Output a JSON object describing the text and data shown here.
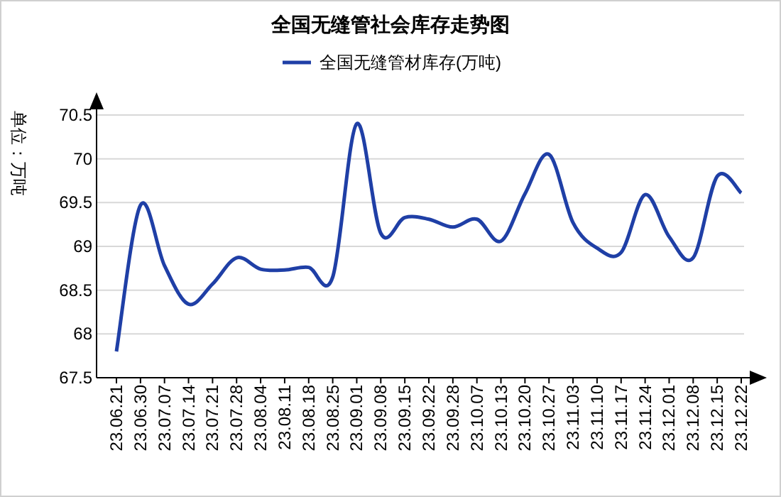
{
  "chart_data": {
    "type": "line",
    "title": "全国无缝管社会库存走势图",
    "ylabel": "单位：万吨",
    "categories": [
      "23.06.21",
      "23.06.30",
      "23.07.07",
      "23.07.14",
      "23.07.21",
      "23.07.28",
      "23.08.04",
      "23.08.11",
      "23.08.18",
      "23.08.25",
      "23.09.01",
      "23.09.08",
      "23.09.15",
      "23.09.22",
      "23.09.28",
      "23.10.07",
      "23.10.13",
      "23.10.20",
      "23.10.27",
      "23.11.03",
      "23.11.10",
      "23.11.17",
      "23.11.24",
      "23.12.01",
      "23.12.08",
      "23.12.15",
      "23.12.22"
    ],
    "series": [
      {
        "name": "全国无缝管材库存(万吨)",
        "color": "#1f3fa6",
        "values": [
          67.8,
          69.47,
          68.78,
          68.34,
          68.57,
          68.87,
          68.74,
          68.73,
          68.76,
          68.65,
          70.4,
          69.15,
          69.33,
          69.31,
          69.22,
          69.31,
          69.06,
          69.6,
          70.05,
          69.27,
          68.98,
          68.93,
          69.59,
          69.11,
          68.87,
          69.8,
          69.61
        ]
      }
    ],
    "ylim": [
      67.5,
      70.5
    ],
    "yticks": [
      67.5,
      68,
      68.5,
      69,
      69.5,
      70,
      70.5
    ],
    "grid": "y",
    "legend": "top"
  }
}
